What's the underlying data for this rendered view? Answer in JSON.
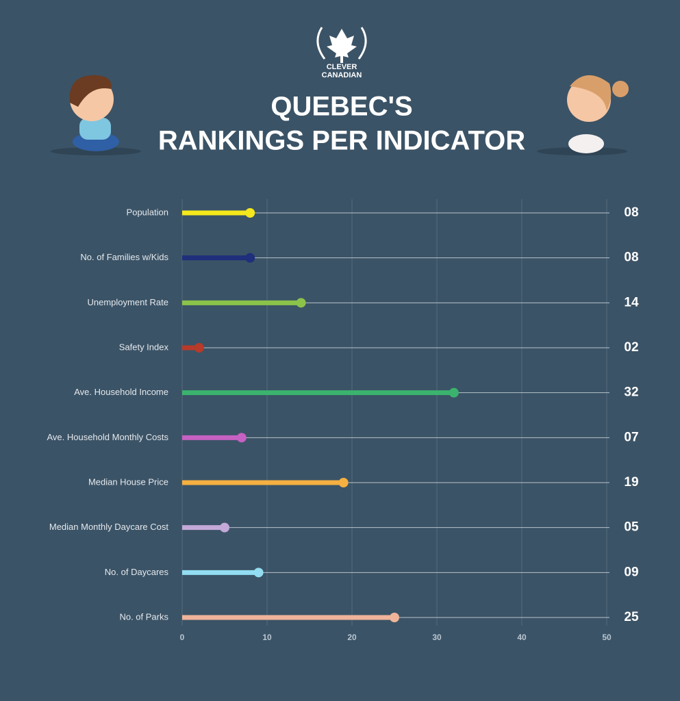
{
  "logo_text": [
    "CLEVER",
    "CANADIAN"
  ],
  "chart_data": {
    "type": "lollipop",
    "title": [
      "QUEBEC'S",
      "RANKINGS PER INDICATOR"
    ],
    "categories": [
      "Population",
      "No. of Families w/Kids",
      "Unemployment Rate",
      "Safety Index",
      "Ave. Household Income",
      "Ave. Household Monthly Costs",
      "Median House Price",
      "Median Monthly Daycare Cost",
      "No. of Daycares",
      "No. of Parks"
    ],
    "values": [
      8,
      8,
      14,
      2,
      32,
      7,
      19,
      5,
      9,
      25
    ],
    "value_labels": [
      "08",
      "08",
      "14",
      "02",
      "32",
      "07",
      "19",
      "05",
      "09",
      "25"
    ],
    "colors": [
      "#f5e81c",
      "#1f2f7c",
      "#8bc34a",
      "#b83a2a",
      "#3bb36e",
      "#c561c2",
      "#f5b041",
      "#c4a9d8",
      "#92ddf2",
      "#f0b49a"
    ],
    "xlim": [
      0,
      50
    ],
    "xticks": [
      0,
      10,
      20,
      30,
      40,
      50
    ],
    "grid": true
  }
}
